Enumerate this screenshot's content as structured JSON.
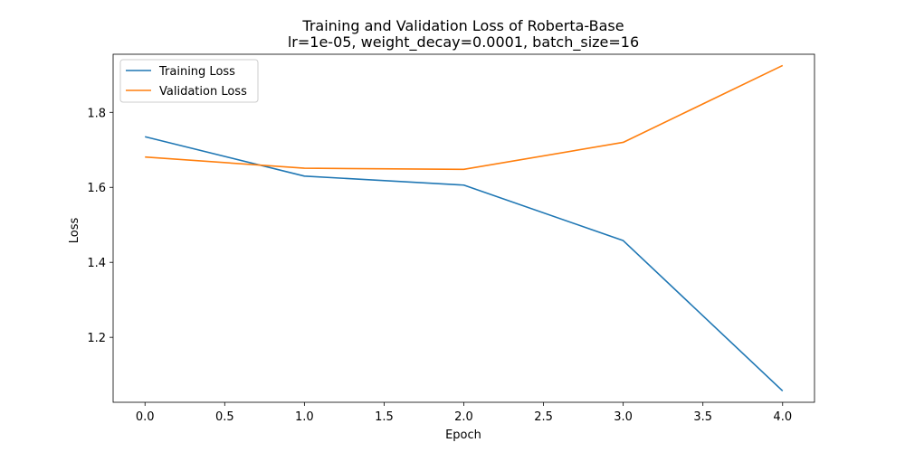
{
  "chart_data": {
    "type": "line",
    "title": "Training and Validation Loss of Roberta-Base",
    "subtitle": "lr=1e-05, weight_decay=0.0001, batch_size=16",
    "xlabel": "Epoch",
    "ylabel": "Loss",
    "x": [
      0,
      1,
      2,
      3,
      4
    ],
    "xlim": [
      -0.2,
      4.2
    ],
    "ylim": [
      1.0268,
      1.955
    ],
    "xticks": [
      0.0,
      0.5,
      1.0,
      1.5,
      2.0,
      2.5,
      3.0,
      3.5,
      4.0
    ],
    "xtick_labels": [
      "0.0",
      "0.5",
      "1.0",
      "1.5",
      "2.0",
      "2.5",
      "3.0",
      "3.5",
      "4.0"
    ],
    "yticks": [
      1.2,
      1.4,
      1.6,
      1.8
    ],
    "ytick_labels": [
      "1.2",
      "1.4",
      "1.6",
      "1.8"
    ],
    "grid": false,
    "legend_position": "top-left",
    "series": [
      {
        "name": "Training Loss",
        "color": "#1f77b4",
        "values": [
          1.735,
          1.63,
          1.606,
          1.458,
          1.057
        ]
      },
      {
        "name": "Validation Loss",
        "color": "#ff7f0e",
        "values": [
          1.681,
          1.651,
          1.648,
          1.72,
          1.925
        ]
      }
    ]
  }
}
